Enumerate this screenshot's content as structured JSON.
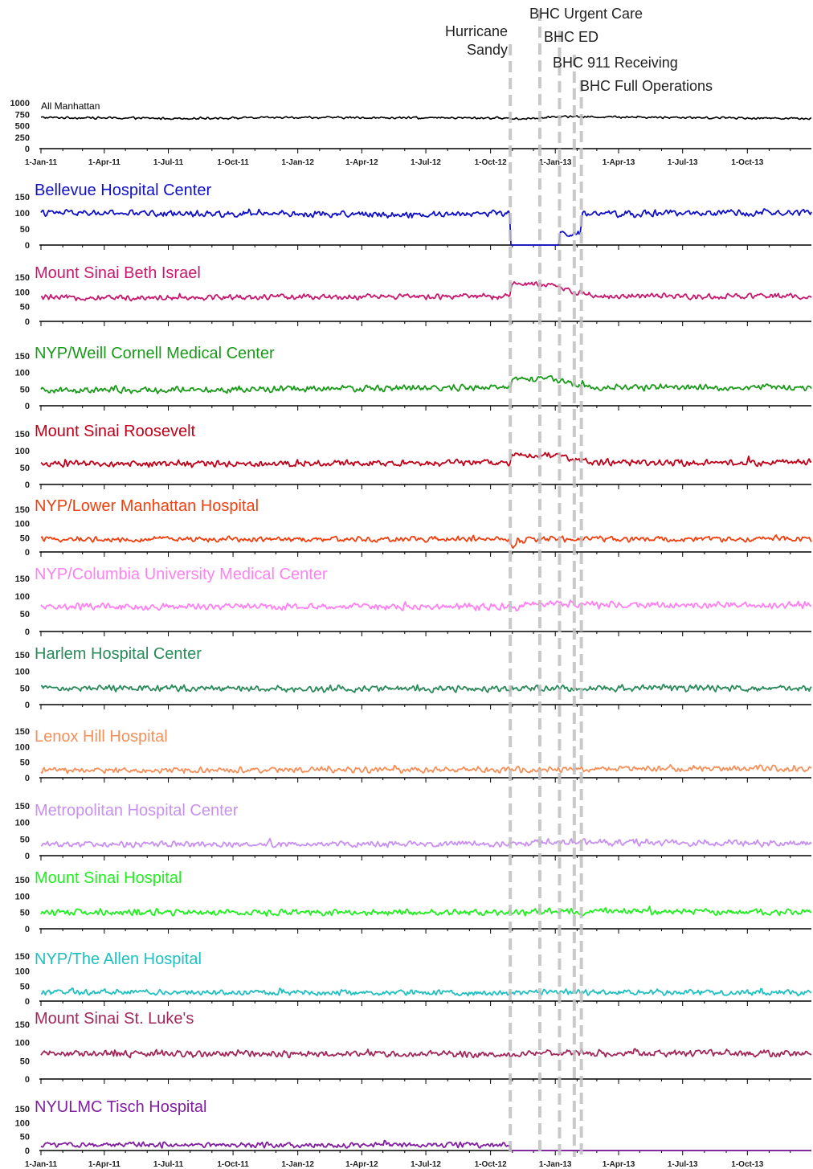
{
  "figure": {
    "dates": [
      "1-Jan-11",
      "1-Apr-11",
      "1-Jul-11",
      "1-Oct-11",
      "1-Jan-12",
      "1-Apr-12",
      "1-Jul-12",
      "1-Oct-12",
      "1-Jan-13",
      "1-Apr-13",
      "1-Jul-13",
      "1-Oct-13"
    ],
    "events": [
      {
        "label": "Hurricane\nSandy",
        "date": "2012-10-29"
      },
      {
        "label": "BHC Urgent Care",
        "date": "2012-12-10"
      },
      {
        "label": "BHC ED",
        "date": "2013-01-07"
      },
      {
        "label": "BHC 911 Receiving",
        "date": "2013-01-28"
      },
      {
        "label": "BHC Full Operations",
        "date": "2013-02-07"
      }
    ],
    "event_color": "#c0c0c0"
  },
  "chart_data": [
    {
      "type": "line",
      "title": "All Manhattan",
      "color": "#000000",
      "yticks": [
        0,
        250,
        500,
        750,
        1000
      ],
      "ylim": [
        0,
        1000
      ],
      "x_start": "2011-01-01",
      "x_end": "2013-12-31",
      "series": [
        {
          "x": [
            "2011-01-01",
            "2011-07-01",
            "2012-01-01",
            "2012-07-01",
            "2012-10-15",
            "2012-11-15",
            "2013-01-01",
            "2013-07-01",
            "2013-12-31"
          ],
          "values": [
            680,
            660,
            680,
            670,
            670,
            650,
            700,
            680,
            660
          ]
        }
      ]
    },
    {
      "type": "line",
      "title": "Bellevue Hospital Center",
      "color": "#1010c8",
      "yticks": [
        0,
        50,
        100,
        150
      ],
      "ylim": [
        0,
        150
      ],
      "x_start": "2011-01-01",
      "x_end": "2013-12-31",
      "series": [
        {
          "x": [
            "2011-01-01",
            "2012-07-01",
            "2012-10-28",
            "2012-10-30",
            "2013-01-06",
            "2013-01-08",
            "2013-02-06",
            "2013-02-08",
            "2013-07-01",
            "2013-12-31"
          ],
          "values": [
            100,
            95,
            100,
            0,
            0,
            35,
            35,
            95,
            100,
            100
          ]
        }
      ]
    },
    {
      "type": "line",
      "title": "Mount Sinai Beth Israel",
      "color": "#c8186e",
      "yticks": [
        0,
        50,
        100,
        150
      ],
      "ylim": [
        0,
        150
      ],
      "x_start": "2011-01-01",
      "x_end": "2013-12-31",
      "series": [
        {
          "x": [
            "2011-01-01",
            "2012-10-28",
            "2012-11-01",
            "2012-12-31",
            "2013-02-07",
            "2013-03-01",
            "2013-12-31"
          ],
          "values": [
            80,
            85,
            130,
            120,
            95,
            85,
            85
          ]
        }
      ]
    },
    {
      "type": "line",
      "title": "NYP/Weill Cornell Medical Center",
      "color": "#1a9a1a",
      "yticks": [
        0,
        50,
        100,
        150
      ],
      "ylim": [
        0,
        150
      ],
      "x_start": "2011-01-01",
      "x_end": "2013-12-31",
      "series": [
        {
          "x": [
            "2011-01-01",
            "2012-10-28",
            "2012-11-01",
            "2012-12-31",
            "2013-02-07",
            "2013-03-01",
            "2013-12-31"
          ],
          "values": [
            45,
            55,
            80,
            80,
            60,
            55,
            55
          ]
        }
      ]
    },
    {
      "type": "line",
      "title": "Mount Sinai Roosevelt",
      "color": "#c00018",
      "yticks": [
        0,
        50,
        100,
        150
      ],
      "ylim": [
        0,
        150
      ],
      "x_start": "2011-01-01",
      "x_end": "2013-12-31",
      "series": [
        {
          "x": [
            "2011-01-01",
            "2012-10-28",
            "2012-11-01",
            "2012-12-31",
            "2013-02-07",
            "2013-03-01",
            "2013-12-31"
          ],
          "values": [
            60,
            65,
            85,
            90,
            70,
            65,
            65
          ]
        }
      ]
    },
    {
      "type": "line",
      "title": "NYP/Lower Manhattan Hospital",
      "color": "#f04010",
      "yticks": [
        0,
        50,
        100,
        150
      ],
      "ylim": [
        0,
        150
      ],
      "x_start": "2011-01-01",
      "x_end": "2013-12-31",
      "series": [
        {
          "x": [
            "2011-01-01",
            "2012-10-28",
            "2012-10-31",
            "2012-11-20",
            "2013-01-01",
            "2013-12-31"
          ],
          "values": [
            45,
            45,
            15,
            45,
            45,
            45
          ]
        }
      ]
    },
    {
      "type": "line",
      "title": "NYP/Columbia University Medical Center",
      "color": "#ff80f0",
      "yticks": [
        0,
        50,
        100,
        150
      ],
      "ylim": [
        0,
        150
      ],
      "x_start": "2011-01-01",
      "x_end": "2013-12-31",
      "series": [
        {
          "x": [
            "2011-01-01",
            "2012-10-28",
            "2013-01-01",
            "2013-03-01",
            "2013-12-31"
          ],
          "values": [
            70,
            70,
            80,
            75,
            75
          ]
        }
      ]
    },
    {
      "type": "line",
      "title": "Harlem Hospital Center",
      "color": "#2a8a5a",
      "yticks": [
        0,
        50,
        100,
        150
      ],
      "ylim": [
        0,
        150
      ],
      "x_start": "2011-01-01",
      "x_end": "2013-12-31",
      "series": [
        {
          "x": [
            "2011-01-01",
            "2012-10-28",
            "2013-01-01",
            "2013-12-31"
          ],
          "values": [
            50,
            47,
            50,
            48
          ]
        }
      ]
    },
    {
      "type": "line",
      "title": "Lenox Hill Hospital",
      "color": "#f5905a",
      "yticks": [
        0,
        50,
        100,
        150
      ],
      "ylim": [
        0,
        150
      ],
      "x_start": "2011-01-01",
      "x_end": "2013-12-31",
      "series": [
        {
          "x": [
            "2011-01-01",
            "2012-10-28",
            "2013-01-01",
            "2013-12-31"
          ],
          "values": [
            25,
            25,
            28,
            30
          ]
        }
      ]
    },
    {
      "type": "line",
      "title": "Metropolitan Hospital Center",
      "color": "#c890f0",
      "yticks": [
        0,
        50,
        100,
        150
      ],
      "ylim": [
        0,
        150
      ],
      "x_start": "2011-01-01",
      "x_end": "2013-12-31",
      "series": [
        {
          "x": [
            "2011-01-01",
            "2012-10-28",
            "2013-01-01",
            "2013-12-31"
          ],
          "values": [
            35,
            35,
            42,
            35
          ]
        }
      ]
    },
    {
      "type": "line",
      "title": "Mount Sinai Hospital",
      "color": "#20f020",
      "yticks": [
        0,
        50,
        100,
        150
      ],
      "ylim": [
        0,
        150
      ],
      "x_start": "2011-01-01",
      "x_end": "2013-12-31",
      "series": [
        {
          "x": [
            "2011-01-01",
            "2012-10-28",
            "2013-01-01",
            "2013-12-31"
          ],
          "values": [
            50,
            50,
            55,
            50
          ]
        }
      ]
    },
    {
      "type": "line",
      "title": "NYP/The Allen Hospital",
      "color": "#20c0c0",
      "yticks": [
        0,
        50,
        100,
        150
      ],
      "ylim": [
        0,
        150
      ],
      "x_start": "2011-01-01",
      "x_end": "2013-12-31",
      "series": [
        {
          "x": [
            "2011-01-01",
            "2012-10-28",
            "2013-01-01",
            "2013-12-31"
          ],
          "values": [
            30,
            27,
            30,
            27
          ]
        }
      ]
    },
    {
      "type": "line",
      "title": "Mount Sinai St. Luke's",
      "color": "#a0285a",
      "yticks": [
        0,
        50,
        100,
        150
      ],
      "ylim": [
        0,
        150
      ],
      "x_start": "2011-01-01",
      "x_end": "2013-12-31",
      "series": [
        {
          "x": [
            "2011-01-01",
            "2012-10-28",
            "2013-01-01",
            "2013-12-31"
          ],
          "values": [
            70,
            68,
            72,
            70
          ]
        }
      ]
    },
    {
      "type": "line",
      "title": "NYULMC Tisch Hospital",
      "color": "#8020a0",
      "yticks": [
        0,
        50,
        100,
        150
      ],
      "ylim": [
        0,
        150
      ],
      "x_start": "2011-01-01",
      "x_end": "2013-12-31",
      "series": [
        {
          "x": [
            "2011-01-01",
            "2012-10-28",
            "2012-10-30",
            "2013-12-31"
          ],
          "values": [
            20,
            20,
            0,
            0
          ]
        }
      ]
    }
  ]
}
